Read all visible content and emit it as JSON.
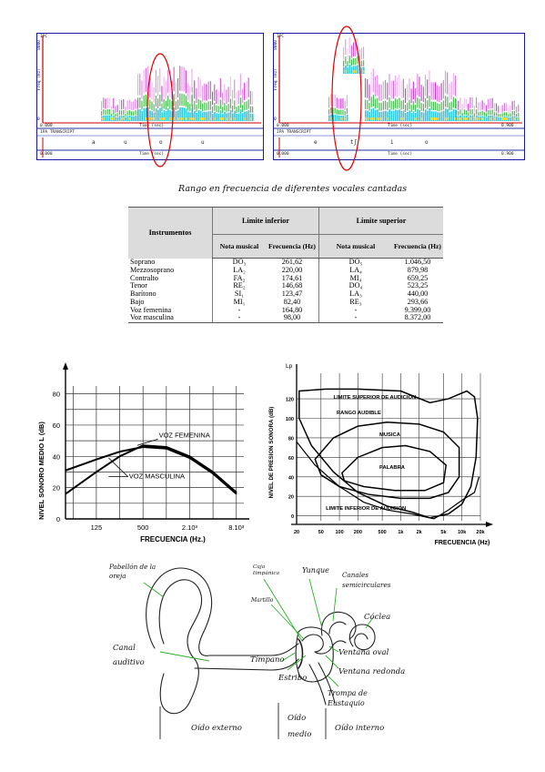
{
  "spectrograms": [
    {
      "top_label": "IPC",
      "freq_label": "Freq (Hz)",
      "freq_max": "8000",
      "freq_min": "0",
      "time_start": "0.000",
      "time_label": "Time (sec)",
      "time_end": "",
      "transcript_title": "IPA TRANSCRIPT",
      "phonemes": [
        "a",
        "u",
        "o",
        "u"
      ],
      "bottom_start": "0.000",
      "bottom_time_label": "Time (sec)",
      "bottom_end": ""
    },
    {
      "top_label": "IPC",
      "freq_label": "Freq (Hz)",
      "freq_max": "8000",
      "freq_min": "0",
      "time_start": "0.000",
      "time_label": "Time (sec)",
      "time_end": "0.900",
      "transcript_title": "IPA TRANSCRIPT",
      "phonemes": [
        "e",
        "tʃ",
        "i",
        "o"
      ],
      "bottom_start": "0.000",
      "bottom_time_label": "Time (sec)",
      "bottom_end": "0.900"
    }
  ],
  "table_caption": "Rango en frecuencia de diferentes vocales cantadas",
  "table": {
    "col_instrumentos": "Instrumentos",
    "col_limite_inferior": "Límite inferior",
    "col_limite_superior": "Límite superior",
    "sub_nota": "Nota musical",
    "sub_frecuencia": "Frecuencia (Hz)",
    "sub_nota_superior": "Nota musical",
    "sub_frecuencia_superior": "Frecuencia (Hz)",
    "rows": [
      [
        "Soprano",
        "DO₃",
        "261,62",
        "DO₅",
        "1.046,50"
      ],
      [
        "Mezzosoprano",
        "LA₂",
        "220,00",
        "LA₄",
        "879,98"
      ],
      [
        "Contralto",
        "FA₂",
        "174,61",
        "MI₄",
        "659,25"
      ],
      [
        "Tenor",
        "RE₂",
        "146,68",
        "DO₄",
        "523,25"
      ],
      [
        "Barítono",
        "SI₁",
        "123,47",
        "LA₃",
        "440,00"
      ],
      [
        "Bajo",
        "MI₁",
        "82,40",
        "RE₃",
        "293,66"
      ],
      [
        "Voz femenina",
        "-",
        "164,80",
        "-",
        "9.399,00"
      ],
      [
        "Voz masculina",
        "-",
        "98,00",
        "-",
        "8.372,00"
      ]
    ]
  },
  "chart_data": [
    {
      "type": "line",
      "title": "",
      "xlabel": "FRECUENCIA (Hz.)",
      "ylabel": "NIVEL SONORO MEDIO L (dB)",
      "x_ticks": [
        "125",
        "500",
        "2.10³",
        "8.10³"
      ],
      "y_ticks": [
        "0",
        "20",
        "40",
        "60",
        "80"
      ],
      "ylim": [
        0,
        85
      ],
      "series": [
        {
          "name": "VOZ FEMENINA",
          "x": [
            50,
            125,
            250,
            500,
            1000,
            2000,
            4000,
            8000
          ],
          "y": [
            31,
            38,
            43,
            46,
            45,
            39,
            29,
            16
          ]
        },
        {
          "name": "VOZ MASCULINA",
          "x": [
            50,
            125,
            250,
            500,
            1000,
            2000,
            4000,
            8000
          ],
          "y": [
            16,
            30,
            40,
            47,
            46,
            40,
            30,
            17
          ]
        }
      ]
    },
    {
      "type": "area",
      "title": "",
      "xlabel": "FRECUENCIA (Hz)",
      "ylabel": "NIVEL DE PRESION SONORA (dB)",
      "y_axis_symbol": "Lp",
      "x_ticks": [
        "20",
        "50",
        "100",
        "200",
        "500",
        "1k",
        "2k",
        "5k",
        "10k",
        "20k"
      ],
      "y_ticks": [
        "0",
        "20",
        "40",
        "60",
        "80",
        "100",
        "120"
      ],
      "ylim": [
        -5,
        135
      ],
      "regions": [
        {
          "label": "LIMITE SUPERIOR DE AUDICION"
        },
        {
          "label": "RANGO AUDIBLE"
        },
        {
          "label": "MUSICA"
        },
        {
          "label": "PALABRA"
        },
        {
          "label": "LIMITE INFERIOR DE AUDICION"
        }
      ]
    }
  ],
  "ear_diagram": {
    "labels": {
      "pabellon": "Pabellón de la oreja",
      "caja": "Caja timpánica",
      "yunque": "Yunque",
      "canales": "Canales semicirculares",
      "martillo": "Martillo",
      "coclea": "Cóclea",
      "canal": "Canal auditivo",
      "timpano": "Tímpano",
      "ventana_oval": "Ventana oval",
      "ventana_redonda": "Ventana redonda",
      "estribo": "Estribo",
      "trompa": "Trompa de Eustaquio"
    },
    "sections": {
      "externo": "Oído externo",
      "medio": "Oído medio",
      "interno": "Oído interno"
    }
  }
}
